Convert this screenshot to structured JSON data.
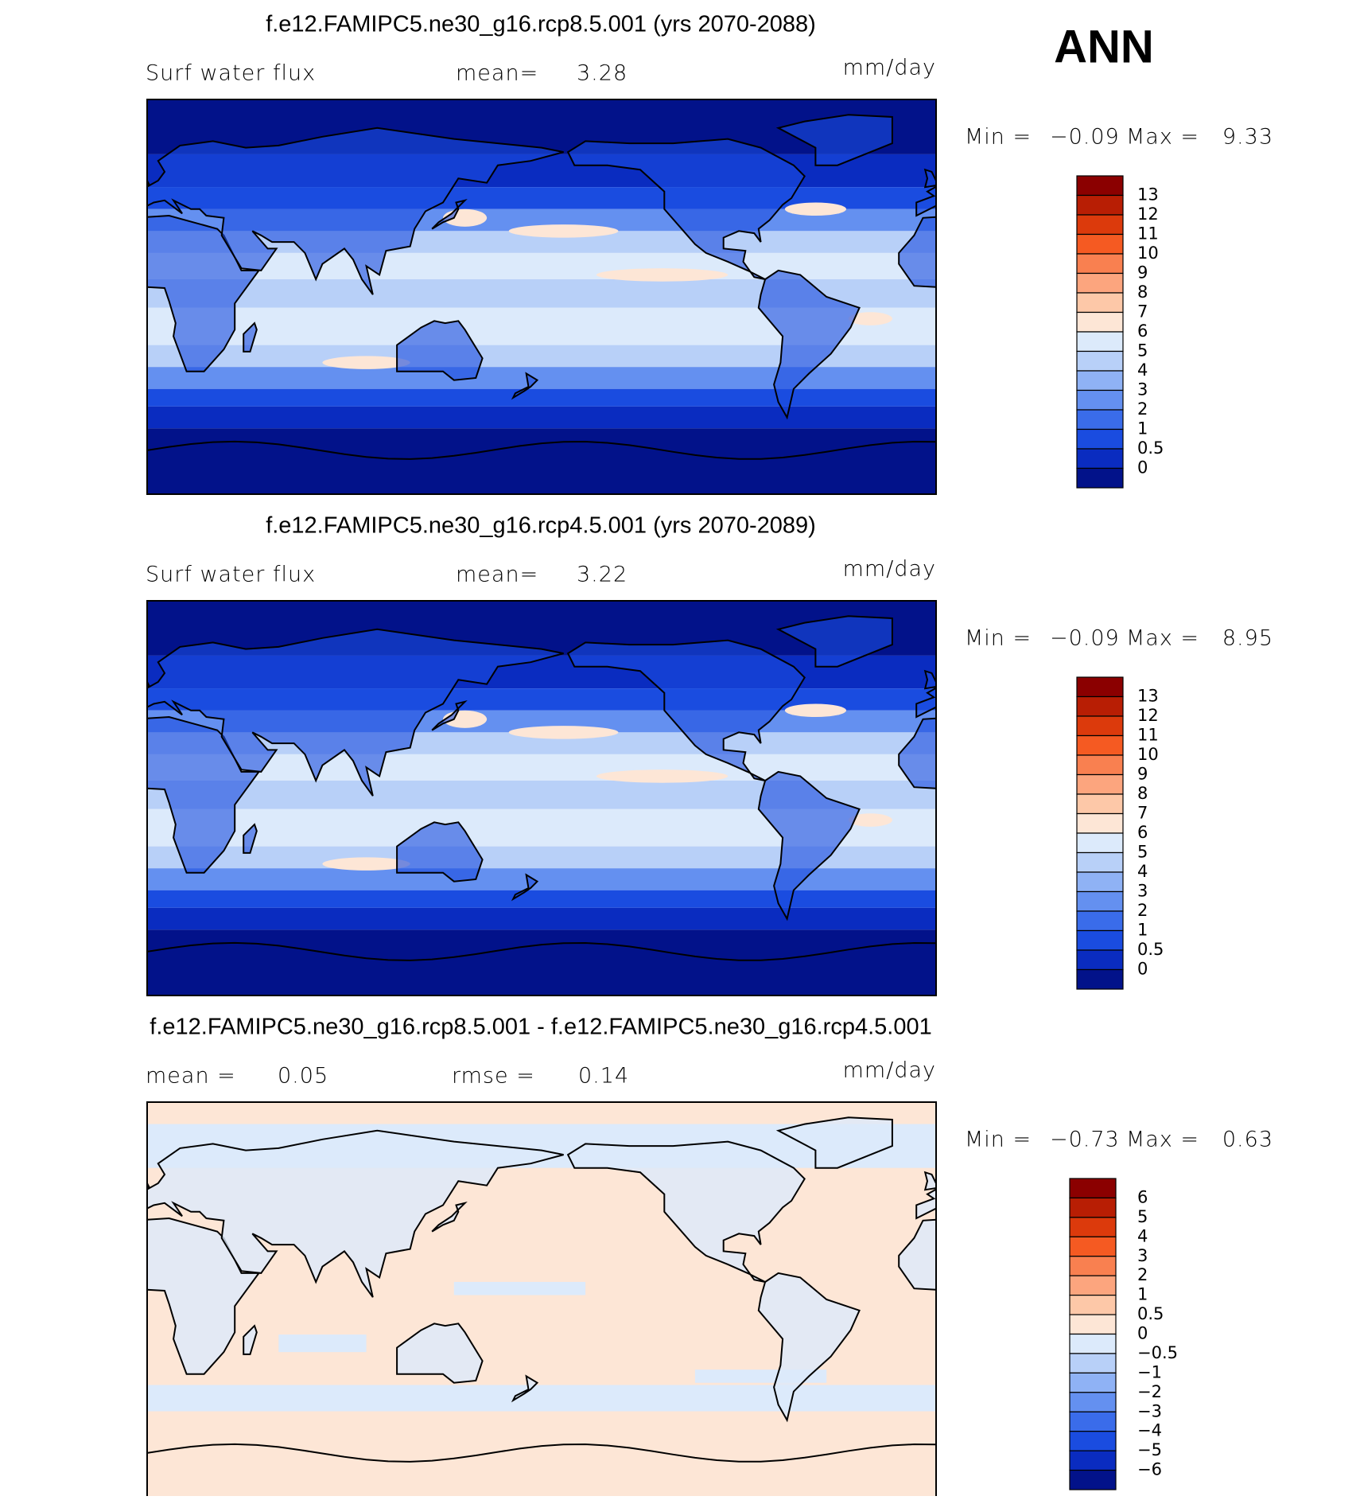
{
  "header": {
    "season": "ANN"
  },
  "panels": [
    {
      "title": "f.e12.FAMIPC5.ne30_g16.rcp8.5.001 (yrs 2070-2088)",
      "header_texts": [
        "Surf water flux",
        "mean=",
        "3.28"
      ],
      "units": "mm/day",
      "min_label": "Min =",
      "min_value": "−0.09",
      "max_label": "Max =",
      "max_value": "9.33",
      "colorbar": {
        "labels": [
          "13",
          "12",
          "11",
          "10",
          "9",
          "8",
          "7",
          "6",
          "5",
          "4",
          "3",
          "2",
          "1",
          "0.5",
          "0"
        ],
        "colors": [
          "#8b0000",
          "#b81e04",
          "#dc3a0c",
          "#f55a22",
          "#f98050",
          "#fca57e",
          "#fdc8a8",
          "#fde6d6",
          "#dceafb",
          "#b8d0f8",
          "#8fb2f5",
          "#6490f0",
          "#3a6cea",
          "#1a4ce0",
          "#0a2cc0",
          "#02128a"
        ]
      }
    },
    {
      "title": "f.e12.FAMIPC5.ne30_g16.rcp4.5.001 (yrs 2070-2089)",
      "header_texts": [
        "Surf water flux",
        "mean=",
        "3.22"
      ],
      "units": "mm/day",
      "min_label": "Min =",
      "min_value": "−0.09",
      "max_label": "Max =",
      "max_value": "8.95",
      "colorbar": {
        "labels": [
          "13",
          "12",
          "11",
          "10",
          "9",
          "8",
          "7",
          "6",
          "5",
          "4",
          "3",
          "2",
          "1",
          "0.5",
          "0"
        ],
        "colors": [
          "#8b0000",
          "#b81e04",
          "#dc3a0c",
          "#f55a22",
          "#f98050",
          "#fca57e",
          "#fdc8a8",
          "#fde6d6",
          "#dceafb",
          "#b8d0f8",
          "#8fb2f5",
          "#6490f0",
          "#3a6cea",
          "#1a4ce0",
          "#0a2cc0",
          "#02128a"
        ]
      }
    },
    {
      "title": "f.e12.FAMIPC5.ne30_g16.rcp8.5.001 - f.e12.FAMIPC5.ne30_g16.rcp4.5.001",
      "header_texts": [
        "mean =",
        "0.05",
        "rmse =",
        "0.14"
      ],
      "units": "mm/day",
      "min_label": "Min =",
      "min_value": "−0.73",
      "max_label": "Max =",
      "max_value": "0.63",
      "colorbar": {
        "labels": [
          "6",
          "5",
          "4",
          "3",
          "2",
          "1",
          "0.5",
          "0",
          "−0.5",
          "−1",
          "−2",
          "−3",
          "−4",
          "−5",
          "−6"
        ],
        "colors": [
          "#8b0000",
          "#b81e04",
          "#dc3a0c",
          "#f55a22",
          "#f98050",
          "#fca57e",
          "#fdc8a8",
          "#fde6d6",
          "#dceafb",
          "#b8d0f8",
          "#8fb2f5",
          "#6490f0",
          "#3a6cea",
          "#1a4ce0",
          "#0a2cc0",
          "#02128a"
        ]
      }
    }
  ]
}
